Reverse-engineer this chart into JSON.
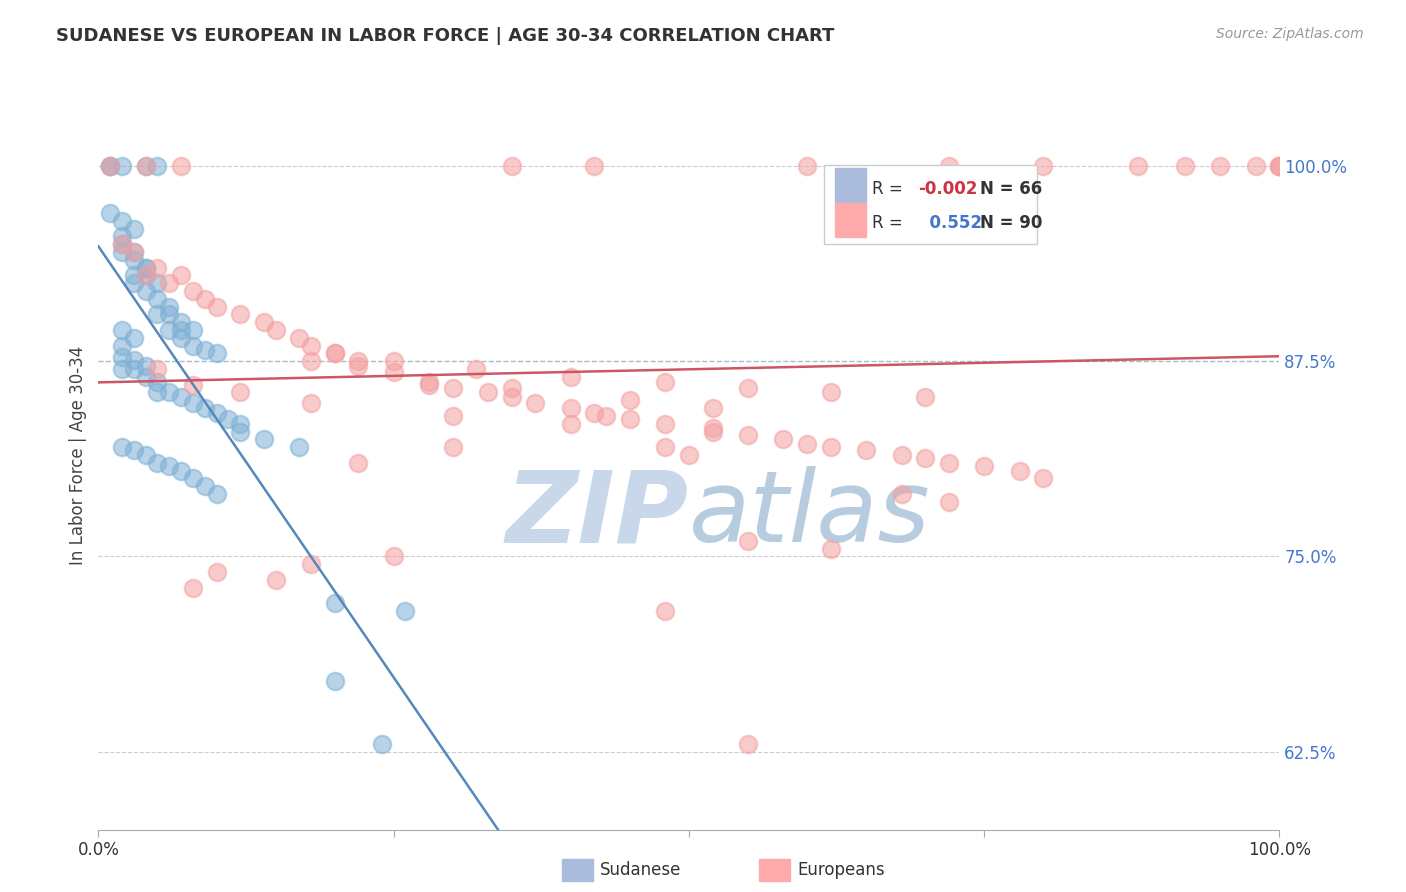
{
  "title": "SUDANESE VS EUROPEAN IN LABOR FORCE | AGE 30-34 CORRELATION CHART",
  "source": "Source: ZipAtlas.com",
  "ylabel": "In Labor Force | Age 30-34",
  "yticks": [
    0.625,
    0.75,
    0.875,
    1.0
  ],
  "ytick_labels": [
    "62.5%",
    "75.0%",
    "87.5%",
    "100.0%"
  ],
  "xmin": 0.0,
  "xmax": 1.0,
  "ymin": 0.575,
  "ymax": 1.055,
  "legend_blue_r": "-0.002",
  "legend_blue_n": "66",
  "legend_pink_r": "0.552",
  "legend_pink_n": "90",
  "blue_color": "#7EB0D5",
  "pink_color": "#F4A0A0",
  "trend_blue_color": "#5588BB",
  "trend_pink_color": "#CC5566",
  "watermark_zip_color": "#C5D5E8",
  "watermark_atlas_color": "#B0C8E0",
  "grid_color": "#CCCCCC",
  "blue_line_color": "#5588BB",
  "blue_dashed_color": "#99AABB",
  "note_87_5_dashed": true,
  "blue_points_x": [
    0.01,
    0.01,
    0.02,
    0.04,
    0.05,
    0.01,
    0.02,
    0.02,
    0.03,
    0.02,
    0.02,
    0.03,
    0.03,
    0.04,
    0.04,
    0.03,
    0.03,
    0.04,
    0.05,
    0.04,
    0.05,
    0.05,
    0.06,
    0.06,
    0.06,
    0.07,
    0.07,
    0.08,
    0.07,
    0.08,
    0.09,
    0.1,
    0.02,
    0.03,
    0.02,
    0.02,
    0.02,
    0.03,
    0.03,
    0.04,
    0.04,
    0.05,
    0.05,
    0.06,
    0.07,
    0.08,
    0.09,
    0.1,
    0.11,
    0.12,
    0.12,
    0.14,
    0.17,
    0.02,
    0.03,
    0.04,
    0.05,
    0.06,
    0.07,
    0.08,
    0.09,
    0.1,
    0.2,
    0.26,
    0.2,
    0.24
  ],
  "blue_points_y": [
    1.0,
    1.0,
    1.0,
    1.0,
    1.0,
    0.97,
    0.965,
    0.955,
    0.96,
    0.95,
    0.945,
    0.945,
    0.94,
    0.935,
    0.93,
    0.925,
    0.93,
    0.935,
    0.925,
    0.92,
    0.915,
    0.905,
    0.91,
    0.905,
    0.895,
    0.9,
    0.895,
    0.895,
    0.89,
    0.885,
    0.882,
    0.88,
    0.895,
    0.89,
    0.885,
    0.878,
    0.87,
    0.876,
    0.87,
    0.872,
    0.865,
    0.862,
    0.855,
    0.855,
    0.852,
    0.848,
    0.845,
    0.842,
    0.838,
    0.835,
    0.83,
    0.825,
    0.82,
    0.82,
    0.818,
    0.815,
    0.81,
    0.808,
    0.805,
    0.8,
    0.795,
    0.79,
    0.72,
    0.715,
    0.67,
    0.63
  ],
  "pink_points_x": [
    0.01,
    0.04,
    0.07,
    0.35,
    0.42,
    0.6,
    0.72,
    0.8,
    0.88,
    0.92,
    0.95,
    0.98,
    1.0,
    1.0,
    1.0,
    0.02,
    0.03,
    0.04,
    0.05,
    0.06,
    0.07,
    0.08,
    0.09,
    0.1,
    0.12,
    0.14,
    0.15,
    0.17,
    0.18,
    0.2,
    0.2,
    0.22,
    0.22,
    0.25,
    0.28,
    0.3,
    0.33,
    0.35,
    0.37,
    0.4,
    0.42,
    0.43,
    0.45,
    0.48,
    0.52,
    0.55,
    0.58,
    0.6,
    0.62,
    0.65,
    0.68,
    0.7,
    0.72,
    0.75,
    0.78,
    0.8,
    0.18,
    0.25,
    0.32,
    0.4,
    0.48,
    0.55,
    0.62,
    0.7,
    0.05,
    0.08,
    0.12,
    0.18,
    0.3,
    0.4,
    0.52,
    0.28,
    0.35,
    0.45,
    0.52,
    0.3,
    0.48,
    0.22,
    0.5,
    0.68,
    0.72,
    0.55,
    0.62,
    0.25,
    0.18,
    0.1,
    0.15,
    0.08,
    0.55,
    0.48
  ],
  "pink_points_y": [
    1.0,
    1.0,
    1.0,
    1.0,
    1.0,
    1.0,
    1.0,
    1.0,
    1.0,
    1.0,
    1.0,
    1.0,
    1.0,
    1.0,
    1.0,
    0.95,
    0.945,
    0.93,
    0.935,
    0.925,
    0.93,
    0.92,
    0.915,
    0.91,
    0.905,
    0.9,
    0.895,
    0.89,
    0.885,
    0.88,
    0.88,
    0.875,
    0.872,
    0.868,
    0.862,
    0.858,
    0.855,
    0.852,
    0.848,
    0.845,
    0.842,
    0.84,
    0.838,
    0.835,
    0.832,
    0.828,
    0.825,
    0.822,
    0.82,
    0.818,
    0.815,
    0.813,
    0.81,
    0.808,
    0.805,
    0.8,
    0.875,
    0.875,
    0.87,
    0.865,
    0.862,
    0.858,
    0.855,
    0.852,
    0.87,
    0.86,
    0.855,
    0.848,
    0.84,
    0.835,
    0.83,
    0.86,
    0.858,
    0.85,
    0.845,
    0.82,
    0.82,
    0.81,
    0.815,
    0.79,
    0.785,
    0.76,
    0.755,
    0.75,
    0.745,
    0.74,
    0.735,
    0.73,
    0.63,
    0.715
  ]
}
